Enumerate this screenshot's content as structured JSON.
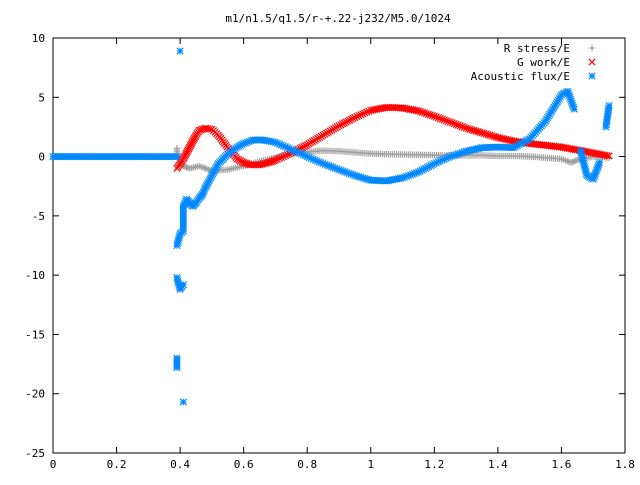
{
  "chart_data": {
    "type": "scatter",
    "title": "m1/n1.5/q1.5/r-+.22-j232/M5.0/1024",
    "xlabel": "",
    "ylabel": "",
    "xlim": [
      0,
      1.8
    ],
    "ylim": [
      -25,
      10
    ],
    "x_ticks": [
      0,
      0.2,
      0.4,
      0.6,
      0.8,
      1,
      1.2,
      1.4,
      1.6,
      1.8
    ],
    "x_tick_labels": [
      "0",
      "0.2",
      "0.4",
      "0.6",
      "0.8",
      "1",
      "1.2",
      "1.4",
      "1.6",
      "1.8"
    ],
    "y_ticks": [
      10,
      5,
      0,
      -5,
      -10,
      -15,
      -20,
      -25
    ],
    "y_tick_labels": [
      "10",
      "5",
      "0",
      "-5",
      "-10",
      "-15",
      "-20",
      "-25"
    ],
    "grid": false,
    "legend_position": "top-right",
    "series": [
      {
        "name": "R stress/E",
        "marker": "plus",
        "color": "#a0a0a0",
        "points": [
          [
            0.39,
            0.7
          ],
          [
            0.39,
            0.4
          ],
          [
            0.4,
            -0.4
          ],
          [
            0.41,
            -0.8
          ],
          [
            0.43,
            -1.0
          ],
          [
            0.46,
            -0.8
          ],
          [
            0.5,
            -1.2
          ],
          [
            0.55,
            -1.1
          ],
          [
            0.6,
            -0.8
          ],
          [
            0.65,
            -0.4
          ],
          [
            0.7,
            -0.1
          ],
          [
            0.75,
            0.3
          ],
          [
            0.8,
            0.4
          ],
          [
            0.85,
            0.5
          ],
          [
            0.9,
            0.45
          ],
          [
            0.95,
            0.35
          ],
          [
            1.0,
            0.25
          ],
          [
            1.05,
            0.2
          ],
          [
            1.1,
            0.18
          ],
          [
            1.15,
            0.15
          ],
          [
            1.2,
            0.12
          ],
          [
            1.25,
            0.1
          ],
          [
            1.3,
            0.1
          ],
          [
            1.35,
            0.1
          ],
          [
            1.4,
            0.05
          ],
          [
            1.45,
            0.05
          ],
          [
            1.5,
            0.0
          ],
          [
            1.55,
            -0.1
          ],
          [
            1.6,
            -0.2
          ],
          [
            1.63,
            -0.5
          ],
          [
            1.65,
            -0.3
          ],
          [
            1.68,
            -0.1
          ],
          [
            1.7,
            0.0
          ],
          [
            1.73,
            -0.05
          ],
          [
            1.75,
            -0.1
          ]
        ]
      },
      {
        "name": "G work/E",
        "marker": "cross",
        "color": "#ff0000",
        "points": [
          [
            0.39,
            -1.0
          ],
          [
            0.4,
            -0.6
          ],
          [
            0.41,
            -0.2
          ],
          [
            0.42,
            0.3
          ],
          [
            0.43,
            0.8
          ],
          [
            0.44,
            1.3
          ],
          [
            0.45,
            1.8
          ],
          [
            0.46,
            2.2
          ],
          [
            0.48,
            2.4
          ],
          [
            0.5,
            2.3
          ],
          [
            0.52,
            1.8
          ],
          [
            0.54,
            1.1
          ],
          [
            0.56,
            0.4
          ],
          [
            0.58,
            -0.2
          ],
          [
            0.6,
            -0.5
          ],
          [
            0.62,
            -0.7
          ],
          [
            0.65,
            -0.7
          ],
          [
            0.68,
            -0.5
          ],
          [
            0.7,
            -0.3
          ],
          [
            0.75,
            0.3
          ],
          [
            0.8,
            1.0
          ],
          [
            0.85,
            1.8
          ],
          [
            0.9,
            2.6
          ],
          [
            0.95,
            3.3
          ],
          [
            1.0,
            3.9
          ],
          [
            1.05,
            4.15
          ],
          [
            1.1,
            4.1
          ],
          [
            1.15,
            3.85
          ],
          [
            1.2,
            3.4
          ],
          [
            1.25,
            2.9
          ],
          [
            1.3,
            2.4
          ],
          [
            1.35,
            2.0
          ],
          [
            1.4,
            1.6
          ],
          [
            1.45,
            1.3
          ],
          [
            1.5,
            1.1
          ],
          [
            1.55,
            0.95
          ],
          [
            1.6,
            0.8
          ],
          [
            1.65,
            0.55
          ],
          [
            1.7,
            0.3
          ],
          [
            1.75,
            0.05
          ]
        ]
      },
      {
        "name": "Acoustic flux/E",
        "marker": "star",
        "color": "#0088ff",
        "points": [
          [
            0.0,
            0.0
          ],
          [
            0.05,
            0.0
          ],
          [
            0.1,
            0.0
          ],
          [
            0.15,
            0.0
          ],
          [
            0.2,
            0.0
          ],
          [
            0.25,
            0.0
          ],
          [
            0.3,
            0.0
          ],
          [
            0.35,
            0.0
          ],
          [
            0.39,
            0.0
          ],
          [
            0.4,
            8.9
          ],
          [
            0.39,
            -17.0
          ],
          [
            0.39,
            -17.8
          ],
          [
            0.41,
            -20.7
          ],
          [
            0.39,
            -10.2
          ],
          [
            0.4,
            -11.2
          ],
          [
            0.41,
            -10.8
          ],
          [
            0.39,
            -7.5
          ],
          [
            0.4,
            -6.5
          ],
          [
            0.41,
            -6.3
          ],
          [
            0.41,
            -5.2
          ],
          [
            0.41,
            -4.2
          ],
          [
            0.42,
            -3.6
          ],
          [
            0.43,
            -3.9
          ],
          [
            0.44,
            -4.2
          ],
          [
            0.45,
            -3.9
          ],
          [
            0.46,
            -3.5
          ],
          [
            0.47,
            -3.2
          ],
          [
            0.48,
            -2.6
          ],
          [
            0.5,
            -1.6
          ],
          [
            0.52,
            -0.6
          ],
          [
            0.55,
            0.2
          ],
          [
            0.58,
            0.8
          ],
          [
            0.6,
            1.1
          ],
          [
            0.63,
            1.4
          ],
          [
            0.66,
            1.4
          ],
          [
            0.7,
            1.2
          ],
          [
            0.75,
            0.6
          ],
          [
            0.8,
            0.0
          ],
          [
            0.85,
            -0.6
          ],
          [
            0.9,
            -1.1
          ],
          [
            0.95,
            -1.6
          ],
          [
            1.0,
            -2.0
          ],
          [
            1.05,
            -2.05
          ],
          [
            1.1,
            -1.8
          ],
          [
            1.15,
            -1.3
          ],
          [
            1.2,
            -0.6
          ],
          [
            1.25,
            0.0
          ],
          [
            1.3,
            0.45
          ],
          [
            1.35,
            0.75
          ],
          [
            1.4,
            0.8
          ],
          [
            1.45,
            0.75
          ],
          [
            1.5,
            1.5
          ],
          [
            1.55,
            3.0
          ],
          [
            1.58,
            4.3
          ],
          [
            1.6,
            5.2
          ],
          [
            1.62,
            5.5
          ],
          [
            1.64,
            4.0
          ],
          [
            1.66,
            0.5
          ],
          [
            1.68,
            -1.6
          ],
          [
            1.7,
            -1.9
          ],
          [
            1.72,
            -0.5
          ],
          [
            1.74,
            2.5
          ],
          [
            1.75,
            4.3
          ]
        ]
      }
    ]
  }
}
